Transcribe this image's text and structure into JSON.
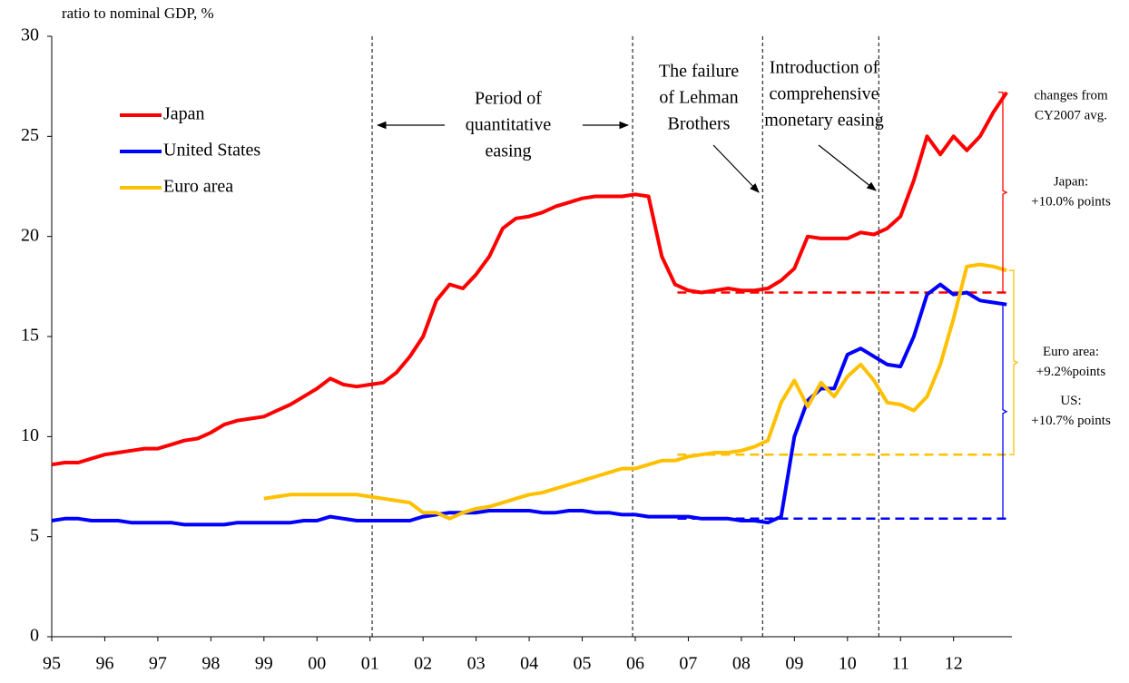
{
  "chart_data": {
    "type": "line",
    "y_label": "ratio to nominal GDP, %",
    "xlim": [
      1995,
      2013.1
    ],
    "ylim": [
      0,
      30
    ],
    "yticks": [
      0,
      5,
      10,
      15,
      20,
      25,
      30
    ],
    "xticks": [
      {
        "value": 1995,
        "label": "95"
      },
      {
        "value": 1996,
        "label": "96"
      },
      {
        "value": 1997,
        "label": "97"
      },
      {
        "value": 1998,
        "label": "98"
      },
      {
        "value": 1999,
        "label": "99"
      },
      {
        "value": 2000,
        "label": "00"
      },
      {
        "value": 2001,
        "label": "01"
      },
      {
        "value": 2002,
        "label": "02"
      },
      {
        "value": 2003,
        "label": "03"
      },
      {
        "value": 2004,
        "label": "04"
      },
      {
        "value": 2005,
        "label": "05"
      },
      {
        "value": 2006,
        "label": "06"
      },
      {
        "value": 2007,
        "label": "07"
      },
      {
        "value": 2008,
        "label": "08"
      },
      {
        "value": 2009,
        "label": "09"
      },
      {
        "value": 2010,
        "label": "10"
      },
      {
        "value": 2011,
        "label": "11"
      },
      {
        "value": 2012,
        "label": "12"
      }
    ],
    "x": [
      1995,
      1995.25,
      1995.5,
      1995.75,
      1996,
      1996.25,
      1996.5,
      1996.75,
      1997,
      1997.25,
      1997.5,
      1997.75,
      1998,
      1998.25,
      1998.5,
      1998.75,
      1999,
      1999.25,
      1999.5,
      1999.75,
      2000,
      2000.25,
      2000.5,
      2000.75,
      2001,
      2001.25,
      2001.5,
      2001.75,
      2002,
      2002.25,
      2002.5,
      2002.75,
      2003,
      2003.25,
      2003.5,
      2003.75,
      2004,
      2004.25,
      2004.5,
      2004.75,
      2005,
      2005.25,
      2005.5,
      2005.75,
      2006,
      2006.25,
      2006.5,
      2006.75,
      2007,
      2007.25,
      2007.5,
      2007.75,
      2008,
      2008.25,
      2008.5,
      2008.75,
      2009,
      2009.25,
      2009.5,
      2009.75,
      2010,
      2010.25,
      2010.5,
      2010.75,
      2011,
      2011.25,
      2011.5,
      2011.75,
      2012,
      2012.25,
      2012.5,
      2012.75,
      2013
    ],
    "series": [
      {
        "name": "Japan",
        "color": "#ff0000",
        "cy2007_avg": 17.2,
        "change_label": [
          "Japan:",
          "+10.0% points"
        ],
        "values": [
          8.6,
          8.7,
          8.7,
          8.9,
          9.1,
          9.2,
          9.3,
          9.4,
          9.4,
          9.6,
          9.8,
          9.9,
          10.2,
          10.6,
          10.8,
          10.9,
          11.0,
          11.3,
          11.6,
          12.0,
          12.4,
          12.9,
          12.6,
          12.5,
          12.6,
          12.7,
          13.2,
          14.0,
          15.0,
          16.8,
          17.6,
          17.4,
          18.1,
          19.0,
          20.4,
          20.9,
          21.0,
          21.2,
          21.5,
          21.7,
          21.9,
          22.0,
          22.0,
          22.0,
          22.1,
          22.0,
          19.0,
          17.6,
          17.3,
          17.2,
          17.3,
          17.4,
          17.3,
          17.3,
          17.4,
          17.8,
          18.4,
          20.0,
          19.9,
          19.9,
          19.9,
          20.2,
          20.1,
          20.4,
          21.0,
          22.8,
          25.0,
          24.1,
          25.0,
          24.3,
          25.0,
          26.2,
          27.2
        ]
      },
      {
        "name": "United States",
        "color": "#0000ff",
        "cy2007_avg": 5.9,
        "change_label": [
          "US:",
          "+10.7% points"
        ],
        "values": [
          5.8,
          5.9,
          5.9,
          5.8,
          5.8,
          5.8,
          5.7,
          5.7,
          5.7,
          5.7,
          5.6,
          5.6,
          5.6,
          5.6,
          5.7,
          5.7,
          5.7,
          5.7,
          5.7,
          5.8,
          5.8,
          6.0,
          5.9,
          5.8,
          5.8,
          5.8,
          5.8,
          5.8,
          6.0,
          6.1,
          6.2,
          6.2,
          6.2,
          6.3,
          6.3,
          6.3,
          6.3,
          6.2,
          6.2,
          6.3,
          6.3,
          6.2,
          6.2,
          6.1,
          6.1,
          6.0,
          6.0,
          6.0,
          6.0,
          5.9,
          5.9,
          5.9,
          5.8,
          5.8,
          5.7,
          6.0,
          10.0,
          11.8,
          12.4,
          12.4,
          14.1,
          14.4,
          14.0,
          13.6,
          13.5,
          15.0,
          17.1,
          17.6,
          17.1,
          17.2,
          16.8,
          16.7,
          16.6
        ]
      },
      {
        "name": "Euro area",
        "color": "#ffc000",
        "cy2007_avg": 9.1,
        "change_label": [
          "Euro area:",
          "+9.2%points"
        ],
        "values": [
          null,
          null,
          null,
          null,
          null,
          null,
          null,
          null,
          null,
          null,
          null,
          null,
          null,
          null,
          null,
          null,
          6.9,
          7.0,
          7.1,
          7.1,
          7.1,
          7.1,
          7.1,
          7.1,
          7.0,
          6.9,
          6.8,
          6.7,
          6.2,
          6.2,
          5.9,
          6.2,
          6.4,
          6.5,
          6.7,
          6.9,
          7.1,
          7.2,
          7.4,
          7.6,
          7.8,
          8.0,
          8.2,
          8.4,
          8.4,
          8.6,
          8.8,
          8.8,
          9.0,
          9.1,
          9.2,
          9.2,
          9.3,
          9.5,
          9.8,
          11.7,
          12.8,
          11.5,
          12.7,
          12.0,
          13.0,
          13.6,
          12.8,
          11.7,
          11.6,
          11.3,
          12.0,
          13.6,
          15.9,
          18.5,
          18.6,
          18.5,
          18.3
        ]
      }
    ],
    "change_note": [
      "changes from",
      "CY2007 avg."
    ],
    "events": [
      {
        "x": 2001.04,
        "label": []
      },
      {
        "x": 2005.95,
        "label": [
          "Period of",
          "quantitative",
          "easing"
        ]
      },
      {
        "x": 2008.4,
        "label": [
          "The failure",
          "of Lehman",
          "Brothers"
        ]
      },
      {
        "x": 2010.59,
        "label": [
          "Introduction of",
          "comprehensive",
          "monetary easing"
        ]
      }
    ]
  }
}
